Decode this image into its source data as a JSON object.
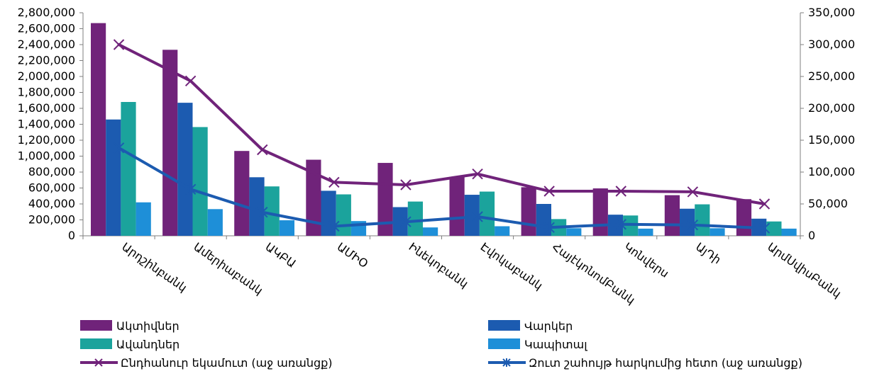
{
  "chart_data": {
    "type": "bar",
    "title": "",
    "xlabel": "",
    "ylabel": "",
    "categories": [
      "Արդշինբանկ",
      "Ամերիաբանկ",
      "ԱԿԲԱ",
      "ԱՄԻՕ",
      "Ինեկոբանկ",
      "Էվոկաբանկ",
      "ՀայէկոնոմԲանկ",
      "Կոնվերս",
      "ԱյԴի",
      "ԱրմՍվիսԲանկ"
    ],
    "left_axis": {
      "ylim": [
        0,
        2800000
      ],
      "ticks": [
        "0",
        "200,000",
        "400,000",
        "600,000",
        "800,000",
        "1,000,000",
        "1,200,000",
        "1,400,000",
        "1,600,000",
        "1,800,000",
        "2,000,000",
        "2,200,000",
        "2,400,000",
        "2,600,000",
        "2,800,000"
      ]
    },
    "right_axis": {
      "ylim": [
        0,
        350000
      ],
      "ticks": [
        "0",
        "50,000",
        "100,000",
        "150,000",
        "200,000",
        "250,000",
        "300,000",
        "350,000"
      ]
    },
    "bar_series": [
      {
        "name": "Ակտիվներ",
        "color": "#70237A",
        "values": [
          2670000,
          2335000,
          1065000,
          955000,
          915000,
          740000,
          610000,
          595000,
          510000,
          460000
        ]
      },
      {
        "name": "Վարկեր",
        "color": "#1C5BB0",
        "values": [
          1460000,
          1670000,
          735000,
          565000,
          360000,
          515000,
          400000,
          265000,
          340000,
          215000
        ]
      },
      {
        "name": "Ավանդներ",
        "color": "#1BA39C",
        "values": [
          1680000,
          1365000,
          620000,
          520000,
          430000,
          555000,
          210000,
          255000,
          395000,
          180000
        ]
      },
      {
        "name": "Կապիտալ",
        "color": "#1E8FD8",
        "values": [
          420000,
          335000,
          195000,
          185000,
          105000,
          120000,
          95000,
          90000,
          95000,
          90000
        ]
      }
    ],
    "line_series": [
      {
        "name": "Ընդհանուր եկամուտ (աջ առանցք)",
        "color": "#70237A",
        "marker": "x",
        "values": [
          300000,
          243000,
          135000,
          84000,
          80000,
          97000,
          70000,
          70000,
          69000,
          50000
        ]
      },
      {
        "name": "Զուտ շահույթ հարկումից հետո (աջ առանցք)",
        "color": "#1C5BB0",
        "marker": "asterisk",
        "values": [
          138000,
          73000,
          37000,
          15000,
          22000,
          30000,
          13000,
          18000,
          17000,
          12000
        ]
      }
    ],
    "grid": false,
    "legend_position": "bottom"
  }
}
